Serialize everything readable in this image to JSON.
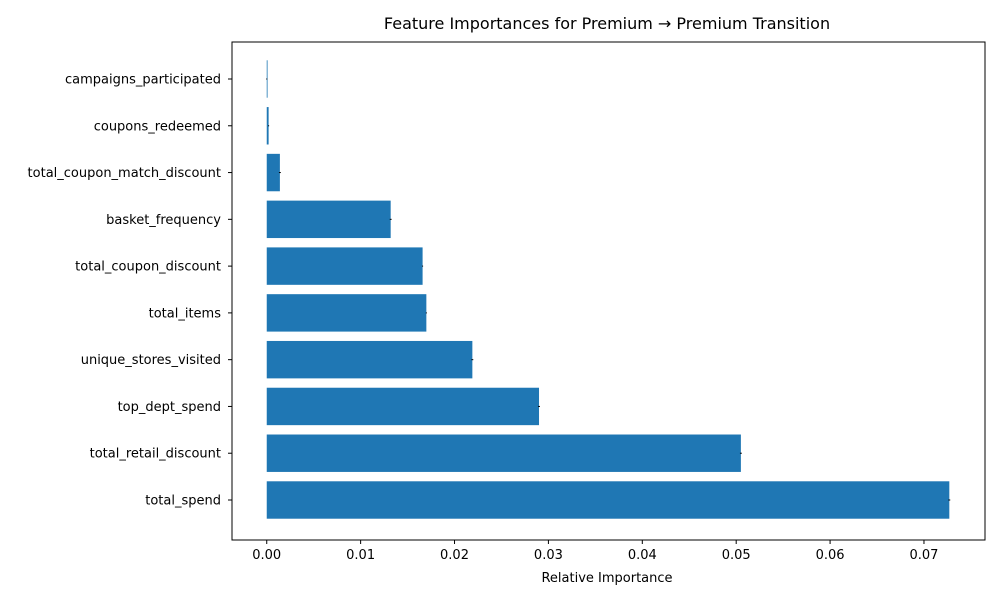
{
  "chart_data": {
    "type": "bar",
    "orientation": "horizontal",
    "title": "Feature Importances for Premium → Premium Transition",
    "xlabel": "Relative Importance",
    "ylabel": "",
    "xlim": [
      -0.0037,
      0.0765
    ],
    "xticks": [
      0.0,
      0.01,
      0.02,
      0.03,
      0.04,
      0.05,
      0.06,
      0.07
    ],
    "xtick_labels": [
      "0.00",
      "0.01",
      "0.02",
      "0.03",
      "0.04",
      "0.05",
      "0.06",
      "0.07"
    ],
    "categories": [
      "total_spend",
      "total_retail_discount",
      "top_dept_spend",
      "unique_stores_visited",
      "total_items",
      "total_coupon_discount",
      "basket_frequency",
      "total_coupon_match_discount",
      "coupons_redeemed",
      "campaigns_participated"
    ],
    "values": [
      0.0727,
      0.0505,
      0.029,
      0.0219,
      0.017,
      0.0166,
      0.0132,
      0.0014,
      0.0002,
      0.0
    ],
    "errors": [
      0.0001,
      0.0001,
      0.0001,
      0.0001,
      0.0,
      0.0,
      0.0001,
      0.0001,
      0.0,
      0.0
    ],
    "bar_color": "#1f77b4",
    "grid": false,
    "legend": "none"
  }
}
